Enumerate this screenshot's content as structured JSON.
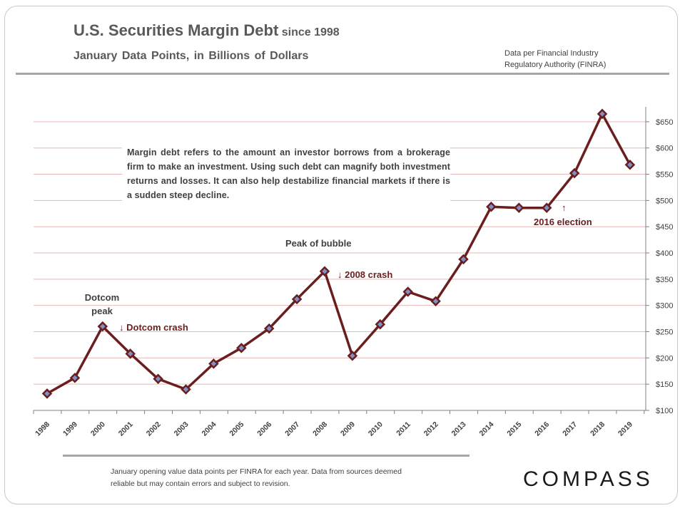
{
  "header": {
    "title": "U.S. Securities Margin Debt",
    "title_suffix": "since 1998",
    "subtitle": "January Data Points, in Billions of Dollars",
    "source_line1": "Data per Financial Industry",
    "source_line2": "Regulatory Authority (FINRA)"
  },
  "description": "Margin debt refers to the amount an investor borrows from a brokerage firm to make an investment. Using such debt can magnify both investment returns and losses. It can also help destabilize financial markets if there is a sudden steep decline.",
  "annotations": {
    "dotcom_peak_line1": "Dotcom",
    "dotcom_peak_line2": "peak",
    "dotcom_crash": "↓ Dotcom crash",
    "peak_bubble": "Peak of bubble",
    "crash_2008": "↓ 2008 crash",
    "election_arrow": "↑",
    "election": "2016 election"
  },
  "footer": {
    "note": "January opening value data points per FINRA for each year. Data from sources deemed reliable but may contain errors and subject to revision.",
    "logo": "COMPASS"
  },
  "colors": {
    "line": "#6b1e1e",
    "marker_fill": "#7f8fc8",
    "marker_stroke": "#6b1e1e",
    "grid": "#e6b8b8",
    "axis": "#7f7f7f",
    "text": "#404040"
  },
  "chart_data": {
    "type": "line",
    "title": "U.S. Securities Margin Debt since 1998",
    "subtitle": "January Data Points, in Billions of Dollars",
    "xlabel": "",
    "ylabel": "",
    "categories": [
      "1998",
      "1999",
      "2000",
      "2001",
      "2002",
      "2003",
      "2004",
      "2005",
      "2006",
      "2007",
      "2008",
      "2009",
      "2010",
      "2011",
      "2012",
      "2013",
      "2014",
      "2015",
      "2016",
      "2017",
      "2018",
      "2019"
    ],
    "series": [
      {
        "name": "Margin Debt",
        "values": [
          132,
          162,
          260,
          208,
          160,
          140,
          189,
          219,
          256,
          312,
          365,
          204,
          264,
          326,
          308,
          388,
          488,
          486,
          486,
          552,
          665,
          568
        ]
      }
    ],
    "ylim": [
      100,
      680
    ],
    "yticks": [
      100,
      150,
      200,
      250,
      300,
      350,
      400,
      450,
      500,
      550,
      600,
      650
    ],
    "ytick_labels": [
      "$100",
      "$150",
      "$200",
      "$250",
      "$300",
      "$350",
      "$400",
      "$450",
      "$500",
      "$550",
      "$600",
      "$650"
    ],
    "y_axis_side": "right",
    "grid": true,
    "legend": "none"
  }
}
